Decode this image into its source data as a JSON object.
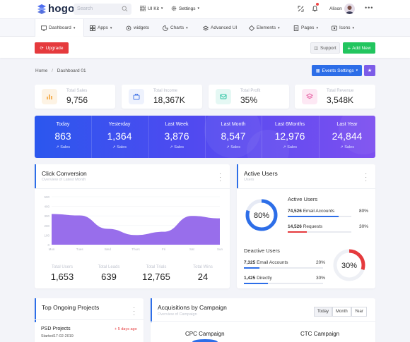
{
  "brand": {
    "name": "hogo"
  },
  "topbar": {
    "search_placeholder": "Search",
    "uikit": "UI Kit",
    "settings": "Settings",
    "user_name": "Alison"
  },
  "nav": {
    "items": [
      {
        "label": "Dashboard"
      },
      {
        "label": "Apps"
      },
      {
        "label": "widgets"
      },
      {
        "label": "Charts"
      },
      {
        "label": "Advanced UI"
      },
      {
        "label": "Elements"
      },
      {
        "label": "Pages"
      },
      {
        "label": "Icons"
      }
    ]
  },
  "actions": {
    "upgrade": "Upgrade",
    "support": "Support",
    "add_new": "Add New"
  },
  "breadcrumb": {
    "home": "Home",
    "separator": "/",
    "current": "Dashboard 01"
  },
  "events_button": "Events Settings",
  "stats": [
    {
      "label": "Total Sales",
      "value": "9,756",
      "color": "#fdf3e4",
      "icon_color": "#f5b35b",
      "icon": "chart-icon"
    },
    {
      "label": "Total Income",
      "value": "18,367K",
      "color": "#eef2fd",
      "icon_color": "#4b7be8",
      "icon": "briefcase-icon"
    },
    {
      "label": "Total Profit",
      "value": "35%",
      "color": "#e5f8f4",
      "icon_color": "#2ec4a5",
      "icon": "mail-icon"
    },
    {
      "label": "Total Revenue",
      "value": "3,548K",
      "color": "#fde8f4",
      "icon_color": "#e86aa8",
      "icon": "layers-icon"
    }
  ],
  "banner": [
    {
      "label": "Today",
      "value": "863",
      "sub": "Sales"
    },
    {
      "label": "Yesterday",
      "value": "1,364",
      "sub": "Sales"
    },
    {
      "label": "Last Week",
      "value": "3,876",
      "sub": "Sales"
    },
    {
      "label": "Last Month",
      "value": "8,547",
      "sub": "Sales"
    },
    {
      "label": "Last 6Months",
      "value": "12,976",
      "sub": "Sales"
    },
    {
      "label": "Last Year",
      "value": "24,844",
      "sub": "Sales"
    }
  ],
  "click_conversion": {
    "title": "Click Conversion",
    "subtitle": "Overview of Latest Month",
    "kpis": [
      {
        "label": "Total Users",
        "value": "1,653"
      },
      {
        "label": "Total Leads",
        "value": "639"
      },
      {
        "label": "Total Trials",
        "value": "12,765"
      },
      {
        "label": "Total Wins",
        "value": "24"
      }
    ]
  },
  "chart_data": {
    "type": "area",
    "title": "",
    "xlabel": "",
    "ylabel": "",
    "categories": [
      "Mon",
      "Tues",
      "Wed",
      "Thurs",
      "Fri",
      "Sat",
      "Sun"
    ],
    "y_ticks": [
      "0",
      "100",
      "200",
      "300",
      "400",
      "500"
    ],
    "ylim": [
      0,
      500
    ],
    "series": [
      {
        "values": [
          320,
          305,
          165,
          100,
          135,
          300,
          275
        ],
        "color": "#8d5ee9"
      }
    ]
  },
  "active_users": {
    "title": "Active Users",
    "subtitle": "Users",
    "ring_active": {
      "text": "80%",
      "value": 0.8
    },
    "active_heading": "Active Users",
    "rows_active": [
      {
        "num": "74,526",
        "label": "Email Accounts",
        "pct": "80%",
        "fill": 0.8,
        "color": "#2d6ee8"
      },
      {
        "num": "14,526",
        "label": "Requests",
        "pct": "30%",
        "fill": 0.3,
        "color": "#e53a3d"
      }
    ],
    "deactive_heading": "Deactive Users",
    "rows_deactive": [
      {
        "num": "7,325",
        "label": "Email Accounts",
        "pct": "20%",
        "fill": 0.2,
        "color": "#2d6ee8"
      },
      {
        "num": "1,425",
        "label": "Directly",
        "pct": "30%",
        "fill": 0.3,
        "color": "#2d6ee8"
      }
    ],
    "ring_deactive": {
      "text": "30%",
      "value": 0.3
    }
  },
  "projects": {
    "title": "Top Ongoing Projects",
    "item_title": "PSD Projects",
    "item_date": "Started17-02-2019",
    "item_due": "+ 5 days ago"
  },
  "acquisitions": {
    "title": "Acquisitions by Campaign",
    "subtitle": "Overview of Campaign",
    "filters": [
      "Today",
      "Month",
      "Year"
    ],
    "campaign_a": "CPC Campaign",
    "campaign_b": "CTC Campaign"
  }
}
